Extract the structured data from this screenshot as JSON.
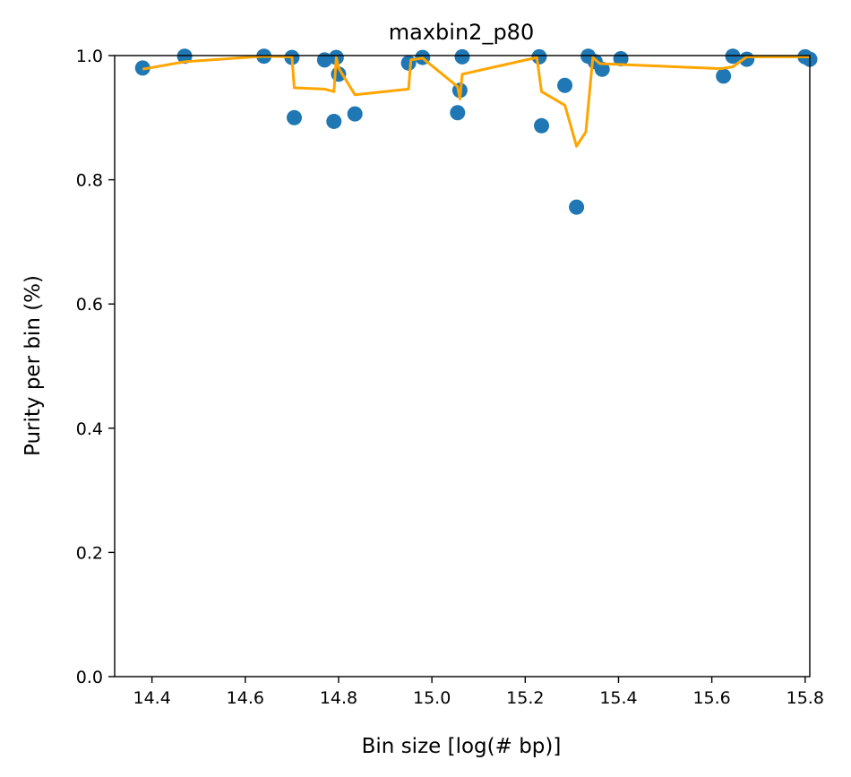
{
  "chart_data": {
    "type": "scatter",
    "title": "maxbin2_p80",
    "xlabel": "Bin size [log(# bp)]",
    "ylabel": "Purity per bin (%)",
    "xlim": [
      14.32,
      15.81
    ],
    "ylim": [
      0.0,
      1.0
    ],
    "grid": false,
    "legend": "none",
    "x_ticks": [
      14.4,
      14.6,
      14.8,
      15.0,
      15.2,
      15.4,
      15.6,
      15.8
    ],
    "x_tick_labels": [
      "14.4",
      "14.6",
      "14.8",
      "15.0",
      "15.2",
      "15.4",
      "15.6",
      "15.8"
    ],
    "y_ticks": [
      0.0,
      0.2,
      0.4,
      0.6,
      0.8,
      1.0
    ],
    "y_tick_labels": [
      "0.0",
      "0.2",
      "0.4",
      "0.6",
      "0.8",
      "1.0"
    ],
    "series": [
      {
        "kind": "scatter",
        "color": "#1f77b4",
        "points": [
          [
            14.38,
            0.98
          ],
          [
            14.47,
            0.999
          ],
          [
            14.64,
            0.999
          ],
          [
            14.7,
            0.997
          ],
          [
            14.705,
            0.9
          ],
          [
            14.77,
            0.993
          ],
          [
            14.79,
            0.894
          ],
          [
            14.795,
            0.997
          ],
          [
            14.8,
            0.97
          ],
          [
            14.835,
            0.906
          ],
          [
            14.95,
            0.988
          ],
          [
            14.98,
            0.997
          ],
          [
            15.055,
            0.908
          ],
          [
            15.06,
            0.944
          ],
          [
            15.065,
            0.998
          ],
          [
            15.23,
            0.998
          ],
          [
            15.235,
            0.887
          ],
          [
            15.285,
            0.952
          ],
          [
            15.31,
            0.756
          ],
          [
            15.335,
            0.999
          ],
          [
            15.35,
            0.99
          ],
          [
            15.365,
            0.978
          ],
          [
            15.405,
            0.995
          ],
          [
            15.625,
            0.967
          ],
          [
            15.645,
            0.999
          ],
          [
            15.675,
            0.994
          ],
          [
            15.8,
            0.998
          ],
          [
            15.81,
            0.994
          ]
        ]
      },
      {
        "kind": "line",
        "color": "#ffa500",
        "points": [
          [
            14.38,
            0.978
          ],
          [
            14.47,
            0.99
          ],
          [
            14.64,
            0.999
          ],
          [
            14.7,
            0.998
          ],
          [
            14.705,
            0.948
          ],
          [
            14.77,
            0.946
          ],
          [
            14.79,
            0.942
          ],
          [
            14.795,
            0.997
          ],
          [
            14.8,
            0.98
          ],
          [
            14.835,
            0.937
          ],
          [
            14.95,
            0.946
          ],
          [
            14.955,
            0.993
          ],
          [
            14.98,
            0.996
          ],
          [
            15.055,
            0.95
          ],
          [
            15.06,
            0.93
          ],
          [
            15.065,
            0.97
          ],
          [
            15.225,
            0.997
          ],
          [
            15.235,
            0.942
          ],
          [
            15.285,
            0.92
          ],
          [
            15.31,
            0.854
          ],
          [
            15.33,
            0.877
          ],
          [
            15.345,
            0.997
          ],
          [
            15.36,
            0.987
          ],
          [
            15.62,
            0.979
          ],
          [
            15.645,
            0.982
          ],
          [
            15.675,
            0.998
          ],
          [
            15.81,
            0.998
          ]
        ]
      }
    ]
  }
}
